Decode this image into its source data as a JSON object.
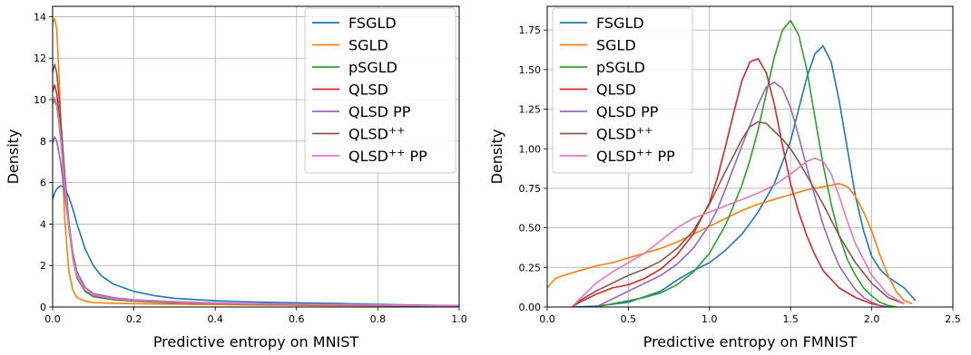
{
  "series_styles": [
    {
      "name": "FSGLD",
      "color": "#1f77b4"
    },
    {
      "name": "SGLD",
      "color": "#ff7f0e"
    },
    {
      "name": "pSGLD",
      "color": "#2ca02c"
    },
    {
      "name": "QLSD",
      "color": "#d62728"
    },
    {
      "name": "QLSD PP",
      "color": "#9467bd"
    },
    {
      "name": "QLSD",
      "sup": "++",
      "color": "#8c564b"
    },
    {
      "name": "QLSD",
      "sup": "++",
      "suffix": " PP",
      "color": "#e377c2"
    }
  ],
  "chart_data": [
    {
      "type": "line",
      "xlabel": "Predictive entropy on MNIST",
      "ylabel": "Density",
      "xlim": [
        0,
        1.0
      ],
      "ylim": [
        0,
        14.5
      ],
      "xticks": [
        0.0,
        0.2,
        0.4,
        0.6,
        0.8,
        1.0
      ],
      "xtick_labels": [
        "0.0",
        "0.2",
        "0.4",
        "0.6",
        "0.8",
        "1.0"
      ],
      "yticks": [
        0,
        2,
        4,
        6,
        8,
        10,
        12,
        14
      ],
      "ytick_labels": [
        "0",
        "2",
        "4",
        "6",
        "8",
        "10",
        "12",
        "14"
      ],
      "grid": true,
      "legend_position": "top-right",
      "series": [
        {
          "name": "FSGLD",
          "x": [
            0,
            0.005,
            0.01,
            0.02,
            0.03,
            0.04,
            0.05,
            0.06,
            0.08,
            0.1,
            0.12,
            0.15,
            0.2,
            0.25,
            0.3,
            0.4,
            0.5,
            0.6,
            0.7,
            0.8,
            0.9,
            1.0
          ],
          "y": [
            5.2,
            5.5,
            5.7,
            5.85,
            5.75,
            5.3,
            4.7,
            4.0,
            2.8,
            2.0,
            1.5,
            1.1,
            0.75,
            0.55,
            0.42,
            0.3,
            0.24,
            0.2,
            0.17,
            0.13,
            0.09,
            0.06
          ]
        },
        {
          "name": "SGLD",
          "x": [
            0,
            0.005,
            0.01,
            0.015,
            0.02,
            0.025,
            0.03,
            0.04,
            0.05,
            0.06,
            0.08,
            0.1,
            0.15,
            0.2,
            0.3,
            0.5,
            0.7,
            1.0
          ],
          "y": [
            13.7,
            13.9,
            13.4,
            11.5,
            9.0,
            6.3,
            4.2,
            1.7,
            0.8,
            0.45,
            0.28,
            0.22,
            0.18,
            0.16,
            0.14,
            0.1,
            0.07,
            0.04
          ]
        },
        {
          "name": "pSGLD",
          "x": [
            0,
            0.005,
            0.01,
            0.015,
            0.02,
            0.03,
            0.04,
            0.05,
            0.06,
            0.08,
            0.1,
            0.15,
            0.2,
            0.3,
            0.4,
            0.6,
            0.8,
            1.0
          ],
          "y": [
            9.8,
            10.0,
            9.7,
            9.0,
            8.0,
            5.8,
            3.8,
            2.3,
            1.4,
            0.75,
            0.5,
            0.35,
            0.28,
            0.2,
            0.16,
            0.11,
            0.07,
            0.04
          ]
        },
        {
          "name": "QLSD",
          "x": [
            0,
            0.005,
            0.01,
            0.015,
            0.02,
            0.03,
            0.04,
            0.05,
            0.06,
            0.08,
            0.1,
            0.15,
            0.2,
            0.3,
            0.4,
            0.6,
            0.8,
            1.0
          ],
          "y": [
            10.4,
            10.7,
            10.3,
            9.5,
            8.4,
            6.0,
            4.0,
            2.5,
            1.5,
            0.8,
            0.55,
            0.38,
            0.3,
            0.22,
            0.17,
            0.12,
            0.08,
            0.05
          ]
        },
        {
          "name": "QLSD PP",
          "x": [
            0,
            0.005,
            0.01,
            0.015,
            0.02,
            0.03,
            0.04,
            0.05,
            0.06,
            0.08,
            0.1,
            0.15,
            0.2,
            0.3,
            0.4,
            0.6,
            0.8,
            1.0
          ],
          "y": [
            7.9,
            8.2,
            8.0,
            7.5,
            6.9,
            5.4,
            3.9,
            2.6,
            1.7,
            0.95,
            0.65,
            0.45,
            0.35,
            0.26,
            0.2,
            0.14,
            0.1,
            0.06
          ]
        },
        {
          "name": "QLSD++",
          "x": [
            0,
            0.005,
            0.01,
            0.015,
            0.02,
            0.03,
            0.04,
            0.05,
            0.06,
            0.08,
            0.1,
            0.15,
            0.2,
            0.3,
            0.4,
            0.6,
            0.8,
            1.0
          ],
          "y": [
            11.3,
            11.7,
            11.3,
            10.3,
            9.0,
            6.4,
            4.1,
            2.5,
            1.5,
            0.8,
            0.55,
            0.38,
            0.3,
            0.22,
            0.17,
            0.12,
            0.08,
            0.05
          ]
        },
        {
          "name": "QLSD++ PP",
          "x": [
            0,
            0.005,
            0.01,
            0.015,
            0.02,
            0.03,
            0.04,
            0.05,
            0.06,
            0.08,
            0.1,
            0.15,
            0.2,
            0.3,
            0.4,
            0.6,
            0.8,
            1.0
          ],
          "y": [
            9.9,
            10.1,
            9.8,
            9.1,
            8.1,
            5.9,
            3.9,
            2.4,
            1.5,
            0.82,
            0.58,
            0.4,
            0.32,
            0.24,
            0.18,
            0.13,
            0.09,
            0.05
          ]
        }
      ]
    },
    {
      "type": "line",
      "xlabel": "Predictive entropy on FMNIST",
      "ylabel": "Density",
      "xlim": [
        0,
        2.5
      ],
      "ylim": [
        0,
        1.9
      ],
      "xticks": [
        0.0,
        0.5,
        1.0,
        1.5,
        2.0,
        2.5
      ],
      "xtick_labels": [
        "0.0",
        "0.5",
        "1.0",
        "1.5",
        "2.0",
        "2.5"
      ],
      "yticks": [
        0,
        0.25,
        0.5,
        0.75,
        1.0,
        1.25,
        1.5,
        1.75
      ],
      "ytick_labels": [
        "0.00",
        "0.25",
        "0.50",
        "0.75",
        "1.00",
        "1.25",
        "1.50",
        "1.75"
      ],
      "grid": true,
      "legend_position": "top-left",
      "series": [
        {
          "name": "FSGLD",
          "x": [
            0.15,
            0.3,
            0.5,
            0.7,
            0.8,
            0.9,
            1.0,
            1.1,
            1.2,
            1.3,
            1.4,
            1.5,
            1.55,
            1.6,
            1.65,
            1.7,
            1.75,
            1.8,
            1.85,
            1.9,
            1.95,
            2.0,
            2.05,
            2.1,
            2.2,
            2.27
          ],
          "y": [
            0.0,
            0.005,
            0.03,
            0.1,
            0.17,
            0.23,
            0.28,
            0.36,
            0.46,
            0.6,
            0.78,
            1.05,
            1.25,
            1.45,
            1.6,
            1.65,
            1.55,
            1.3,
            1.0,
            0.7,
            0.48,
            0.32,
            0.24,
            0.19,
            0.12,
            0.04
          ]
        },
        {
          "name": "SGLD",
          "x": [
            0,
            0.05,
            0.1,
            0.2,
            0.3,
            0.4,
            0.5,
            0.6,
            0.7,
            0.8,
            0.9,
            1.0,
            1.1,
            1.2,
            1.3,
            1.4,
            1.5,
            1.6,
            1.7,
            1.75,
            1.8,
            1.85,
            1.9,
            1.95,
            2.0,
            2.05,
            2.1,
            2.15,
            2.2,
            2.25
          ],
          "y": [
            0.12,
            0.18,
            0.2,
            0.23,
            0.26,
            0.28,
            0.31,
            0.34,
            0.37,
            0.41,
            0.46,
            0.51,
            0.56,
            0.61,
            0.65,
            0.68,
            0.71,
            0.74,
            0.76,
            0.77,
            0.78,
            0.76,
            0.7,
            0.6,
            0.48,
            0.33,
            0.2,
            0.1,
            0.04,
            0.02
          ]
        },
        {
          "name": "pSGLD",
          "x": [
            0.3,
            0.5,
            0.6,
            0.7,
            0.8,
            0.9,
            1.0,
            1.1,
            1.2,
            1.25,
            1.3,
            1.35,
            1.4,
            1.45,
            1.5,
            1.55,
            1.6,
            1.65,
            1.7,
            1.75,
            1.8,
            1.85,
            1.9,
            1.95,
            2.0,
            2.05,
            2.1,
            2.15
          ],
          "y": [
            0.0,
            0.04,
            0.06,
            0.09,
            0.14,
            0.22,
            0.34,
            0.52,
            0.77,
            0.93,
            1.12,
            1.35,
            1.58,
            1.75,
            1.81,
            1.72,
            1.5,
            1.2,
            0.9,
            0.65,
            0.45,
            0.3,
            0.2,
            0.12,
            0.07,
            0.03,
            0.01,
            0.0
          ]
        },
        {
          "name": "QLSD",
          "x": [
            0.15,
            0.2,
            0.3,
            0.4,
            0.5,
            0.6,
            0.7,
            0.8,
            0.9,
            1.0,
            1.05,
            1.1,
            1.15,
            1.2,
            1.25,
            1.3,
            1.35,
            1.4,
            1.45,
            1.5,
            1.55,
            1.6,
            1.65,
            1.7,
            1.8,
            1.9,
            2.0,
            2.1
          ],
          "y": [
            0.0,
            0.03,
            0.08,
            0.12,
            0.14,
            0.18,
            0.24,
            0.33,
            0.46,
            0.66,
            0.82,
            1.02,
            1.23,
            1.43,
            1.55,
            1.57,
            1.48,
            1.28,
            1.02,
            0.78,
            0.6,
            0.45,
            0.33,
            0.23,
            0.12,
            0.06,
            0.02,
            0.0
          ]
        },
        {
          "name": "QLSD PP",
          "x": [
            0.3,
            0.4,
            0.5,
            0.6,
            0.7,
            0.8,
            0.9,
            1.0,
            1.05,
            1.1,
            1.2,
            1.3,
            1.35,
            1.4,
            1.45,
            1.5,
            1.55,
            1.6,
            1.65,
            1.7,
            1.75,
            1.8,
            1.85,
            1.9,
            1.95,
            2.0,
            2.05,
            2.1
          ],
          "y": [
            0.0,
            0.05,
            0.1,
            0.15,
            0.2,
            0.27,
            0.37,
            0.52,
            0.62,
            0.75,
            1.02,
            1.28,
            1.39,
            1.42,
            1.38,
            1.26,
            1.08,
            0.88,
            0.7,
            0.52,
            0.38,
            0.26,
            0.18,
            0.11,
            0.06,
            0.03,
            0.01,
            0.0
          ]
        },
        {
          "name": "QLSD++",
          "x": [
            0.15,
            0.2,
            0.3,
            0.4,
            0.5,
            0.6,
            0.7,
            0.8,
            0.9,
            1.0,
            1.1,
            1.2,
            1.25,
            1.3,
            1.35,
            1.4,
            1.45,
            1.5,
            1.55,
            1.6,
            1.7,
            1.8,
            1.9,
            2.0,
            2.1,
            2.2
          ],
          "y": [
            0.0,
            0.04,
            0.1,
            0.15,
            0.2,
            0.24,
            0.29,
            0.37,
            0.48,
            0.65,
            0.86,
            1.06,
            1.14,
            1.17,
            1.16,
            1.11,
            1.06,
            1.0,
            0.92,
            0.83,
            0.65,
            0.45,
            0.28,
            0.15,
            0.06,
            0.02
          ]
        },
        {
          "name": "QLSD++ PP",
          "x": [
            0.15,
            0.2,
            0.3,
            0.4,
            0.5,
            0.6,
            0.7,
            0.8,
            0.9,
            1.0,
            1.1,
            1.2,
            1.3,
            1.4,
            1.5,
            1.55,
            1.6,
            1.65,
            1.7,
            1.75,
            1.8,
            1.85,
            1.9,
            2.0,
            2.1,
            2.2
          ],
          "y": [
            0.0,
            0.05,
            0.15,
            0.22,
            0.28,
            0.34,
            0.42,
            0.5,
            0.56,
            0.6,
            0.64,
            0.68,
            0.72,
            0.77,
            0.84,
            0.88,
            0.92,
            0.94,
            0.92,
            0.84,
            0.7,
            0.54,
            0.4,
            0.2,
            0.08,
            0.02
          ]
        }
      ]
    }
  ]
}
